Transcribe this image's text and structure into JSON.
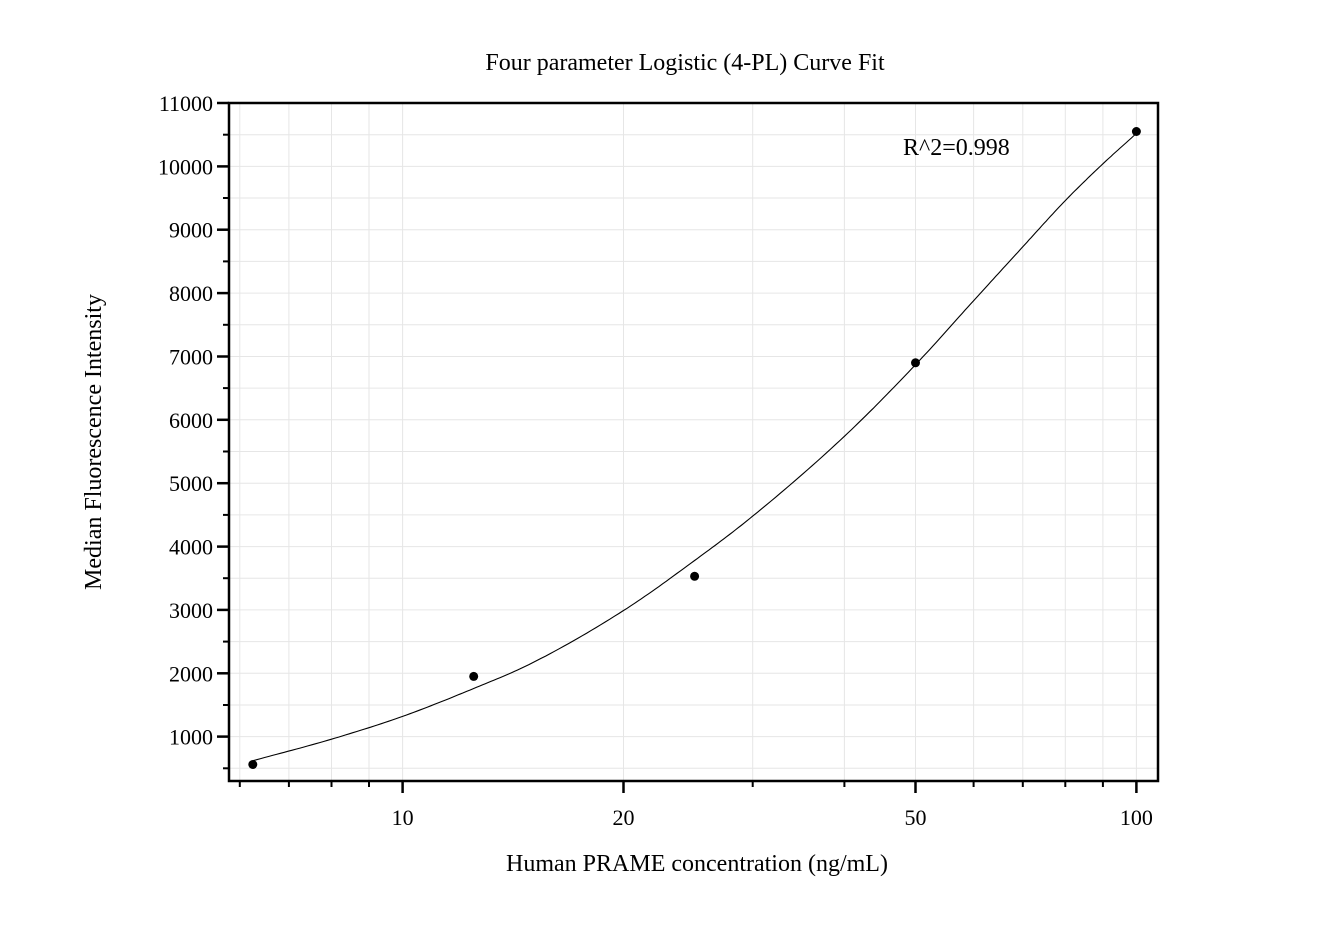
{
  "chart_data": {
    "type": "scatter",
    "title": "Four parameter Logistic (4-PL) Curve Fit",
    "xlabel": "Human PRAME concentration (ng/mL)",
    "ylabel": "Median Fluorescence Intensity",
    "x_scale": "log",
    "xlim": [
      5.8,
      107
    ],
    "ylim": [
      300,
      11000
    ],
    "x_ticks": [
      10,
      20,
      50,
      100
    ],
    "x_tick_labels": [
      "10",
      "20",
      "50",
      "100"
    ],
    "y_ticks": [
      1000,
      2000,
      3000,
      4000,
      5000,
      6000,
      7000,
      8000,
      9000,
      10000,
      11000
    ],
    "y_tick_labels": [
      "1000",
      "2000",
      "3000",
      "4000",
      "5000",
      "6000",
      "7000",
      "8000",
      "9000",
      "10000",
      "11000"
    ],
    "grid": true,
    "annotation": "R^2=0.998",
    "points": {
      "x": [
        6.25,
        12.5,
        25,
        50,
        100
      ],
      "y": [
        560,
        1950,
        3530,
        6900,
        10550
      ]
    },
    "fit_curve": {
      "x": [
        6.25,
        8,
        10,
        12.5,
        15,
        20,
        25,
        30,
        40,
        50,
        60,
        70,
        80,
        90,
        100
      ],
      "y": [
        620,
        960,
        1320,
        1760,
        2160,
        2990,
        3780,
        4480,
        5740,
        6870,
        7880,
        8730,
        9460,
        10040,
        10520
      ]
    }
  }
}
